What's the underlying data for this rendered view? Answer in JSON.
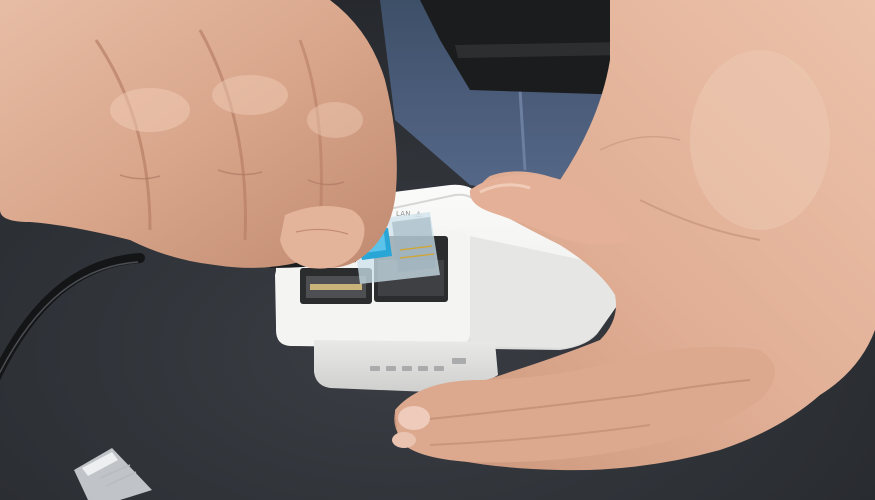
{
  "scene": {
    "description_visible_text": "",
    "device": {
      "port_label": "LAN",
      "warning_symbol": "⚠"
    },
    "icons": {
      "warning": "warning-triangle-icon"
    },
    "colors": {
      "background": "#2a2d31",
      "device_body": "#f1f1f0",
      "skin": "#e0b29a",
      "rj45_clip": "#2aa6d6",
      "jeans": "#4a5d7a"
    }
  }
}
